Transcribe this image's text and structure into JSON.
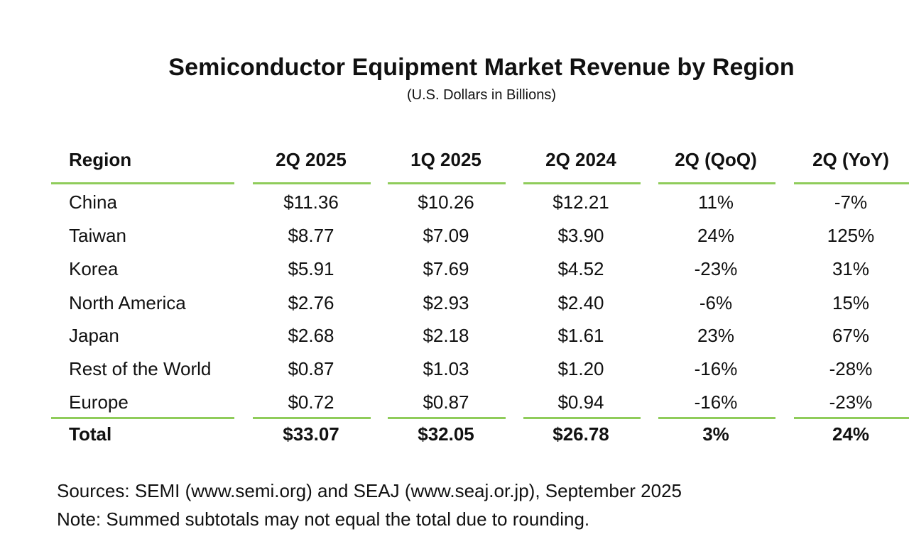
{
  "table": {
    "title": "Semiconductor Equipment Market Revenue by Region",
    "subtitle": "(U.S. Dollars in Billions)",
    "header": [
      "Region",
      "2Q 2025",
      "1Q 2025",
      "2Q 2024",
      "2Q (QoQ)",
      "2Q (YoY)"
    ],
    "rows": [
      [
        "China",
        "$11.36",
        "$10.26",
        "$12.21",
        "11%",
        "-7%"
      ],
      [
        "Taiwan",
        "$8.77",
        "$7.09",
        "$3.90",
        "24%",
        "125%"
      ],
      [
        "Korea",
        "$5.91",
        "$7.69",
        "$4.52",
        "-23%",
        "31%"
      ],
      [
        "North America",
        "$2.76",
        "$2.93",
        "$2.40",
        "-6%",
        "15%"
      ],
      [
        "Japan",
        "$2.68",
        "$2.18",
        "$1.61",
        "23%",
        "67%"
      ],
      [
        "Rest of the World",
        "$0.87",
        "$1.03",
        "$1.20",
        "-16%",
        "-28%"
      ],
      [
        "Europe",
        "$0.72",
        "$0.87",
        "$0.94",
        "-16%",
        "-23%"
      ]
    ],
    "total": [
      "Total",
      "$33.07",
      "$32.05",
      "$26.78",
      "3%",
      "24%"
    ]
  },
  "footnotes": {
    "sources": "Sources: SEMI (www.semi.org) and SEAJ (www.seaj.or.jp), September 2025",
    "note": "Note: Summed subtotals may not equal the total due to rounding."
  },
  "colors": {
    "rule": "#8fcc5a",
    "text": "#111111",
    "background": "#ffffff"
  }
}
